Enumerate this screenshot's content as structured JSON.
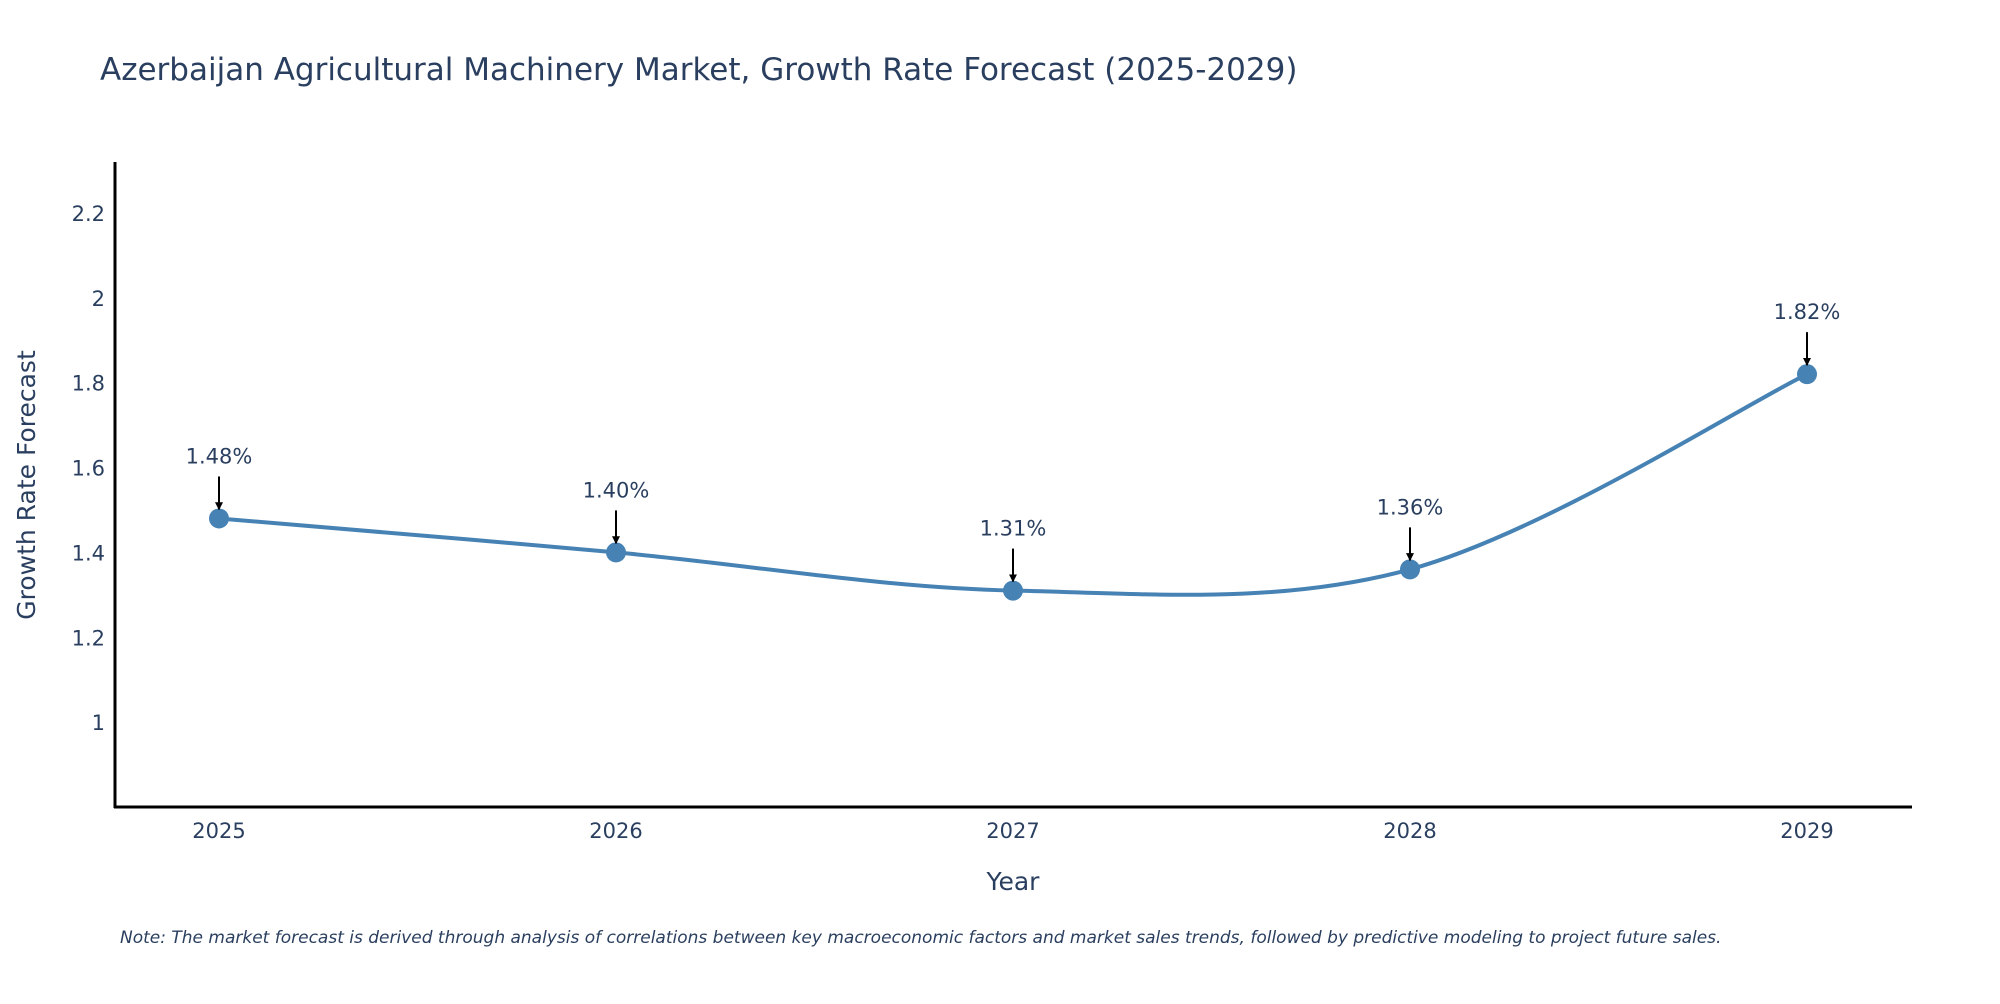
{
  "chart_data": {
    "type": "line",
    "title": "Azerbaijan Agricultural Machinery Market, Growth Rate Forecast (2025-2029)",
    "xlabel": "Year",
    "ylabel": "Growth Rate Forecast",
    "categories": [
      "2025",
      "2026",
      "2027",
      "2028",
      "2029"
    ],
    "values": [
      1.48,
      1.4,
      1.31,
      1.36,
      1.82
    ],
    "data_labels": [
      "1.48%",
      "1.40%",
      "1.31%",
      "1.36%",
      "1.82%"
    ],
    "ylim": [
      0.8,
      2.32
    ],
    "yticks": [
      1,
      1.2,
      1.4,
      1.6,
      1.8,
      2,
      2.2
    ],
    "ytick_labels": [
      "1",
      "1.2",
      "1.4",
      "1.6",
      "1.8",
      "2",
      "2.2"
    ],
    "grid": false,
    "smoothed": true,
    "line_color": "#4682b4",
    "marker_color": "#4682b4",
    "arrow_color": "#000000",
    "note": "Note: The market forecast is derived through analysis of correlations between key macroeconomic factors and market sales trends, followed by predictive modeling to project future sales."
  }
}
